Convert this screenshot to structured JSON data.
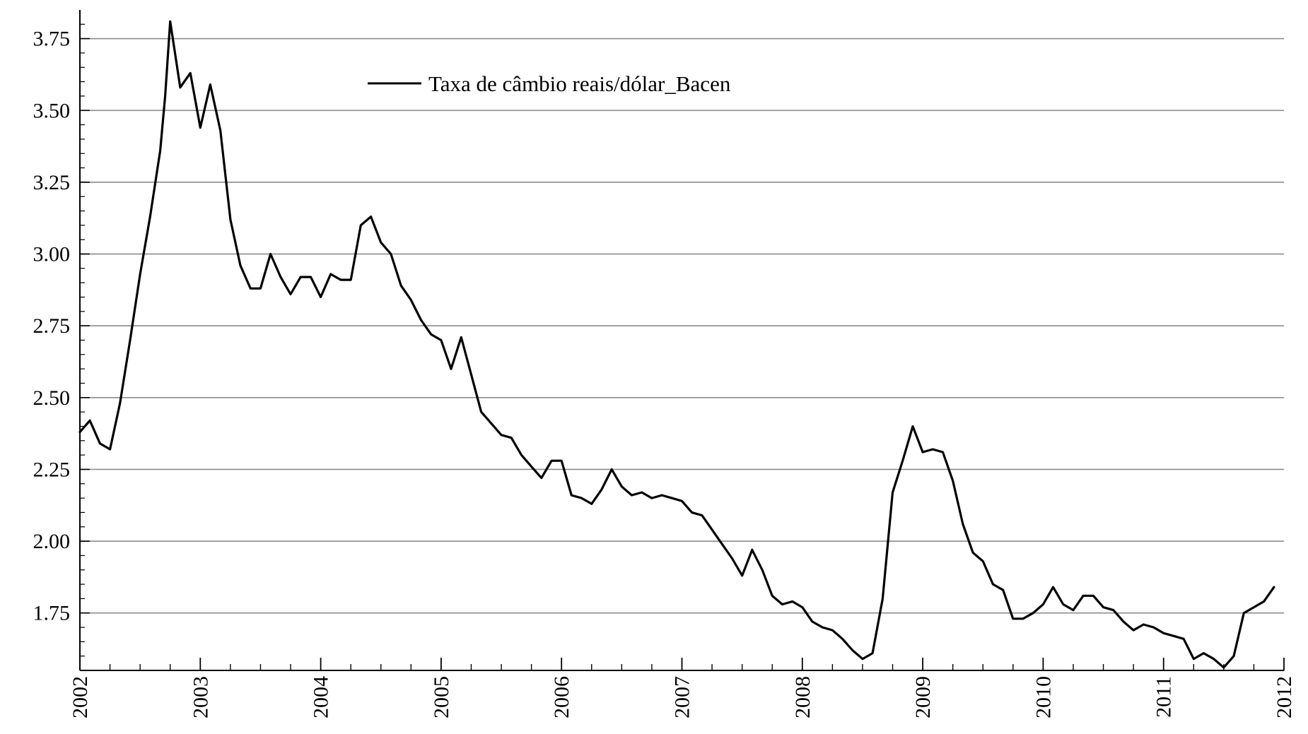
{
  "chart_data": {
    "type": "line",
    "title": "",
    "xlabel": "",
    "ylabel": "",
    "xlim": [
      2002.0,
      2012.0
    ],
    "ylim": [
      1.55,
      3.85
    ],
    "x_ticks": [
      {
        "value": 2002,
        "label": "2002"
      },
      {
        "value": 2003,
        "label": "2003"
      },
      {
        "value": 2004,
        "label": "2004"
      },
      {
        "value": 2005,
        "label": "2005"
      },
      {
        "value": 2006,
        "label": "2006"
      },
      {
        "value": 2007,
        "label": "2007"
      },
      {
        "value": 2008,
        "label": "2008"
      },
      {
        "value": 2009,
        "label": "2009"
      },
      {
        "value": 2010,
        "label": "2010"
      },
      {
        "value": 2011,
        "label": "2011"
      },
      {
        "value": 2012,
        "label": "2012"
      }
    ],
    "y_ticks": [
      {
        "value": 1.75,
        "label": "1.75"
      },
      {
        "value": 2.0,
        "label": "2.00"
      },
      {
        "value": 2.25,
        "label": "2.25"
      },
      {
        "value": 2.5,
        "label": "2.50"
      },
      {
        "value": 2.75,
        "label": "2.75"
      },
      {
        "value": 3.0,
        "label": "3.00"
      },
      {
        "value": 3.25,
        "label": "3.25"
      },
      {
        "value": 3.5,
        "label": "3.50"
      },
      {
        "value": 3.75,
        "label": "3.75"
      }
    ],
    "grid": "horizontal",
    "legend_position": "top-center",
    "series": [
      {
        "name": "Taxa de câmbio reais/dólar_Bacen",
        "color": "#000000",
        "x": [
          2002.0,
          2002.083,
          2002.167,
          2002.25,
          2002.333,
          2002.417,
          2002.5,
          2002.583,
          2002.667,
          2002.708,
          2002.75,
          2002.833,
          2002.917,
          2003.0,
          2003.083,
          2003.167,
          2003.25,
          2003.333,
          2003.417,
          2003.5,
          2003.583,
          2003.667,
          2003.75,
          2003.833,
          2003.917,
          2004.0,
          2004.083,
          2004.167,
          2004.25,
          2004.333,
          2004.417,
          2004.5,
          2004.583,
          2004.667,
          2004.75,
          2004.833,
          2004.917,
          2005.0,
          2005.083,
          2005.167,
          2005.25,
          2005.333,
          2005.417,
          2005.5,
          2005.583,
          2005.667,
          2005.75,
          2005.833,
          2005.917,
          2006.0,
          2006.083,
          2006.167,
          2006.25,
          2006.333,
          2006.417,
          2006.5,
          2006.583,
          2006.667,
          2006.75,
          2006.833,
          2006.917,
          2007.0,
          2007.083,
          2007.167,
          2007.25,
          2007.333,
          2007.417,
          2007.5,
          2007.583,
          2007.667,
          2007.75,
          2007.833,
          2007.917,
          2008.0,
          2008.083,
          2008.167,
          2008.25,
          2008.333,
          2008.417,
          2008.5,
          2008.583,
          2008.667,
          2008.75,
          2008.833,
          2008.917,
          2009.0,
          2009.083,
          2009.167,
          2009.25,
          2009.333,
          2009.417,
          2009.5,
          2009.583,
          2009.667,
          2009.75,
          2009.833,
          2009.917,
          2010.0,
          2010.083,
          2010.167,
          2010.25,
          2010.333,
          2010.417,
          2010.5,
          2010.583,
          2010.667,
          2010.75,
          2010.833,
          2010.917,
          2011.0,
          2011.083,
          2011.167,
          2011.25,
          2011.333,
          2011.417,
          2011.5,
          2011.583,
          2011.667,
          2011.75,
          2011.833,
          2011.917
        ],
        "y": [
          2.38,
          2.42,
          2.34,
          2.32,
          2.48,
          2.7,
          2.93,
          3.13,
          3.36,
          3.55,
          3.81,
          3.58,
          3.63,
          3.44,
          3.59,
          3.43,
          3.12,
          2.96,
          2.88,
          2.88,
          3.0,
          2.92,
          2.86,
          2.92,
          2.92,
          2.85,
          2.93,
          2.91,
          2.91,
          3.1,
          3.13,
          3.04,
          3.0,
          2.89,
          2.84,
          2.77,
          2.72,
          2.7,
          2.6,
          2.71,
          2.58,
          2.45,
          2.41,
          2.37,
          2.36,
          2.3,
          2.26,
          2.22,
          2.28,
          2.28,
          2.16,
          2.15,
          2.13,
          2.18,
          2.25,
          2.19,
          2.16,
          2.17,
          2.15,
          2.16,
          2.15,
          2.14,
          2.1,
          2.09,
          2.04,
          1.99,
          1.94,
          1.88,
          1.97,
          1.9,
          1.81,
          1.78,
          1.79,
          1.77,
          1.72,
          1.7,
          1.69,
          1.66,
          1.62,
          1.59,
          1.61,
          1.8,
          2.17,
          2.28,
          2.4,
          2.31,
          2.32,
          2.31,
          2.21,
          2.06,
          1.96,
          1.93,
          1.85,
          1.83,
          1.73,
          1.73,
          1.75,
          1.78,
          1.84,
          1.78,
          1.76,
          1.81,
          1.81,
          1.77,
          1.76,
          1.72,
          1.69,
          1.71,
          1.7,
          1.68,
          1.67,
          1.66,
          1.59,
          1.61,
          1.59,
          1.56,
          1.6,
          1.75,
          1.77,
          1.79,
          1.84
        ]
      }
    ]
  }
}
